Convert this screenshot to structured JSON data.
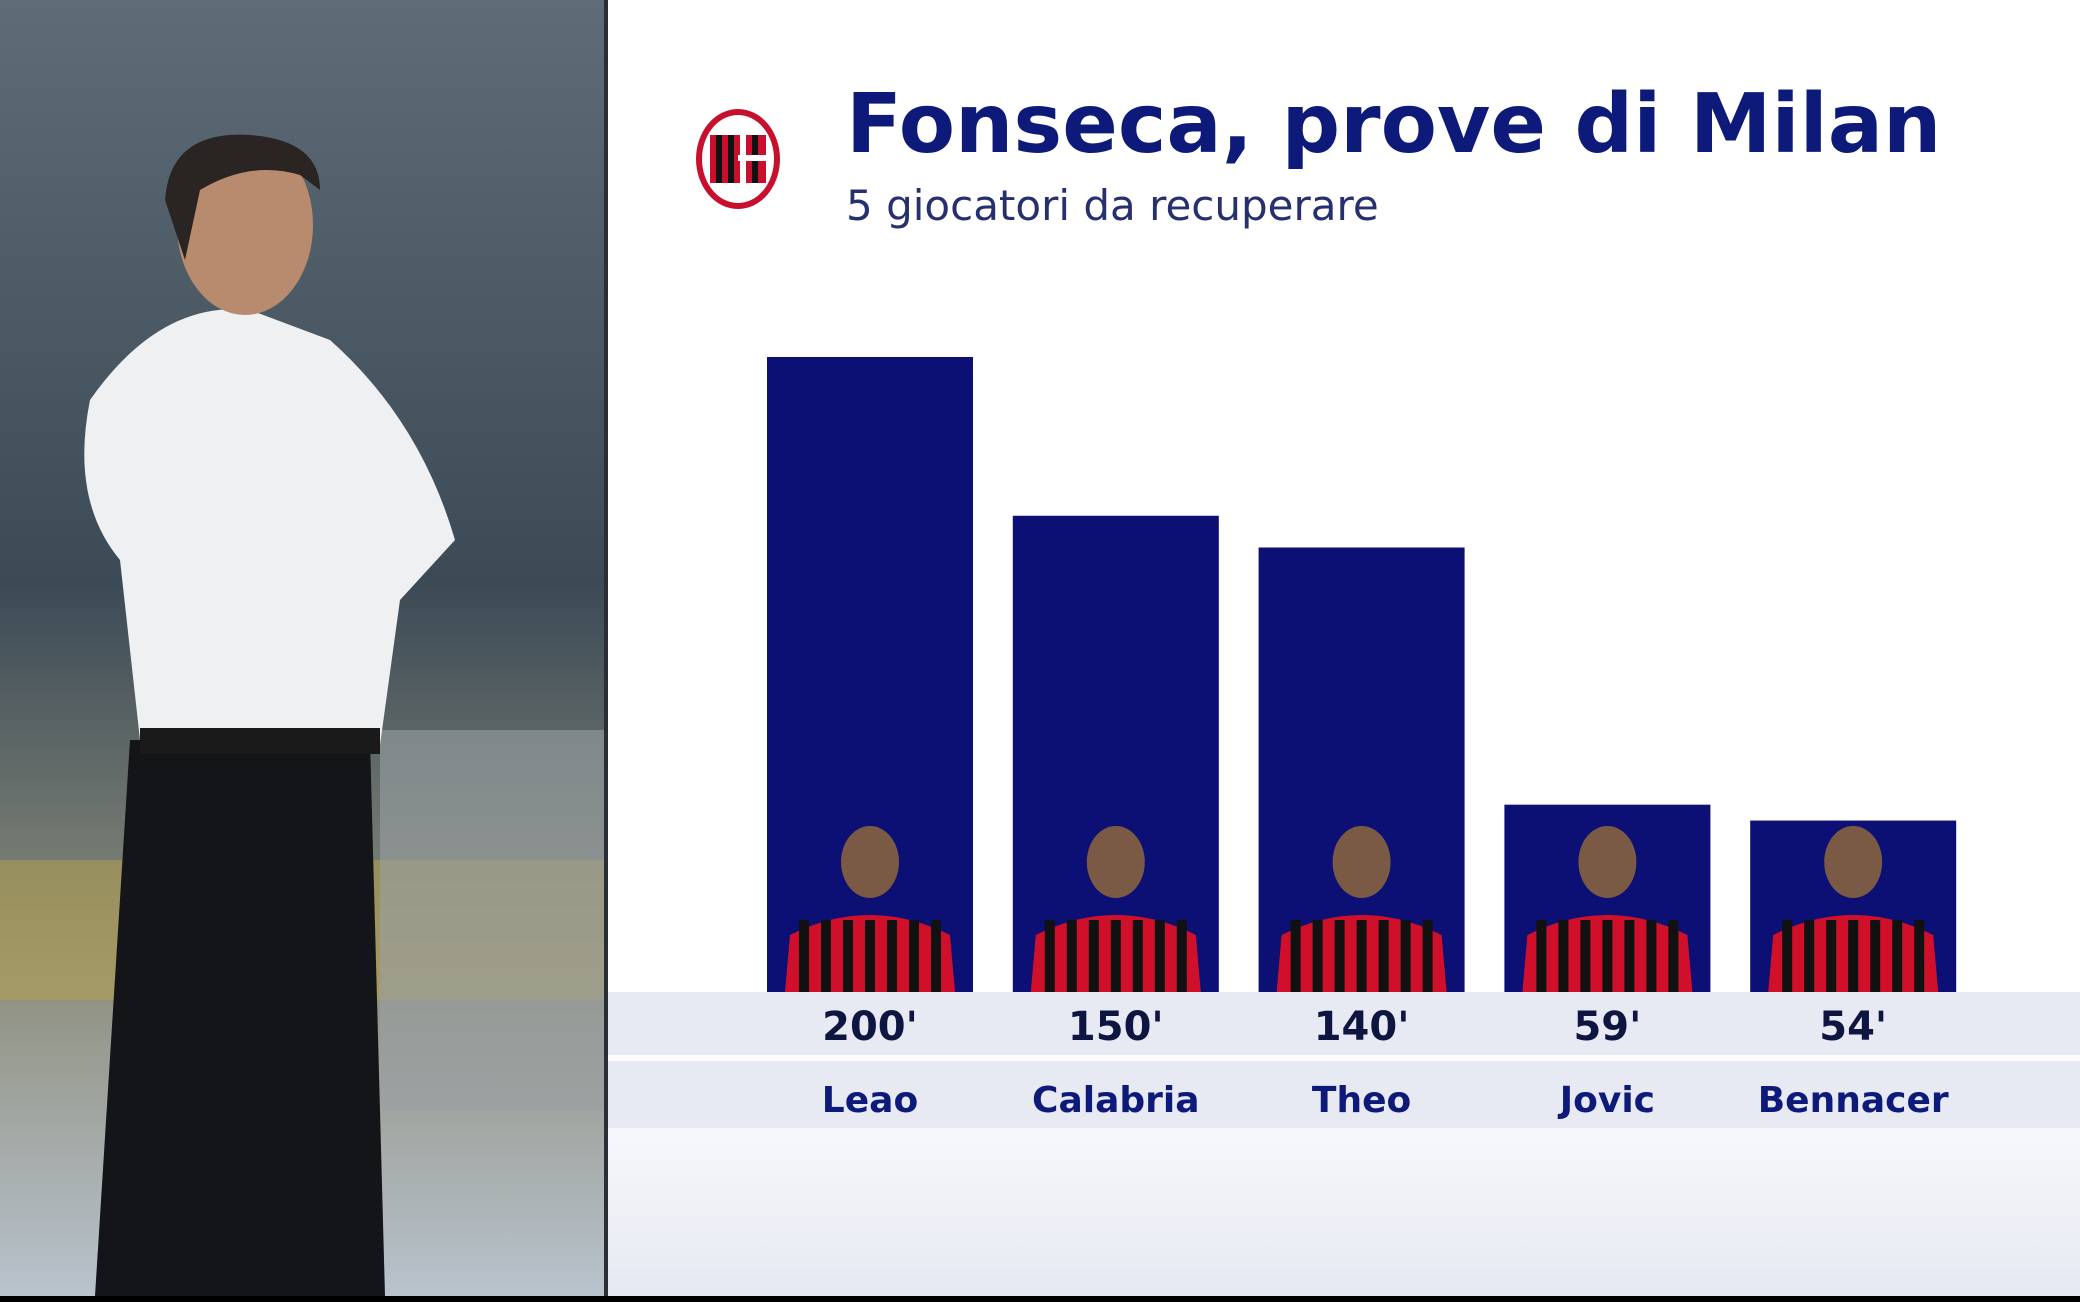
{
  "chart_data": {
    "type": "bar",
    "title": "Fonseca, prove di Milan",
    "subtitle": "5 giocatori da recuperare",
    "categories": [
      "Leao",
      "Calabria",
      "Theo",
      "Jovic",
      "Bennacer"
    ],
    "values": [
      200,
      150,
      140,
      59,
      54
    ],
    "value_labels": [
      "200'",
      "150'",
      "140'",
      "59'",
      "54'"
    ],
    "color": "#0c0f73"
  }
}
